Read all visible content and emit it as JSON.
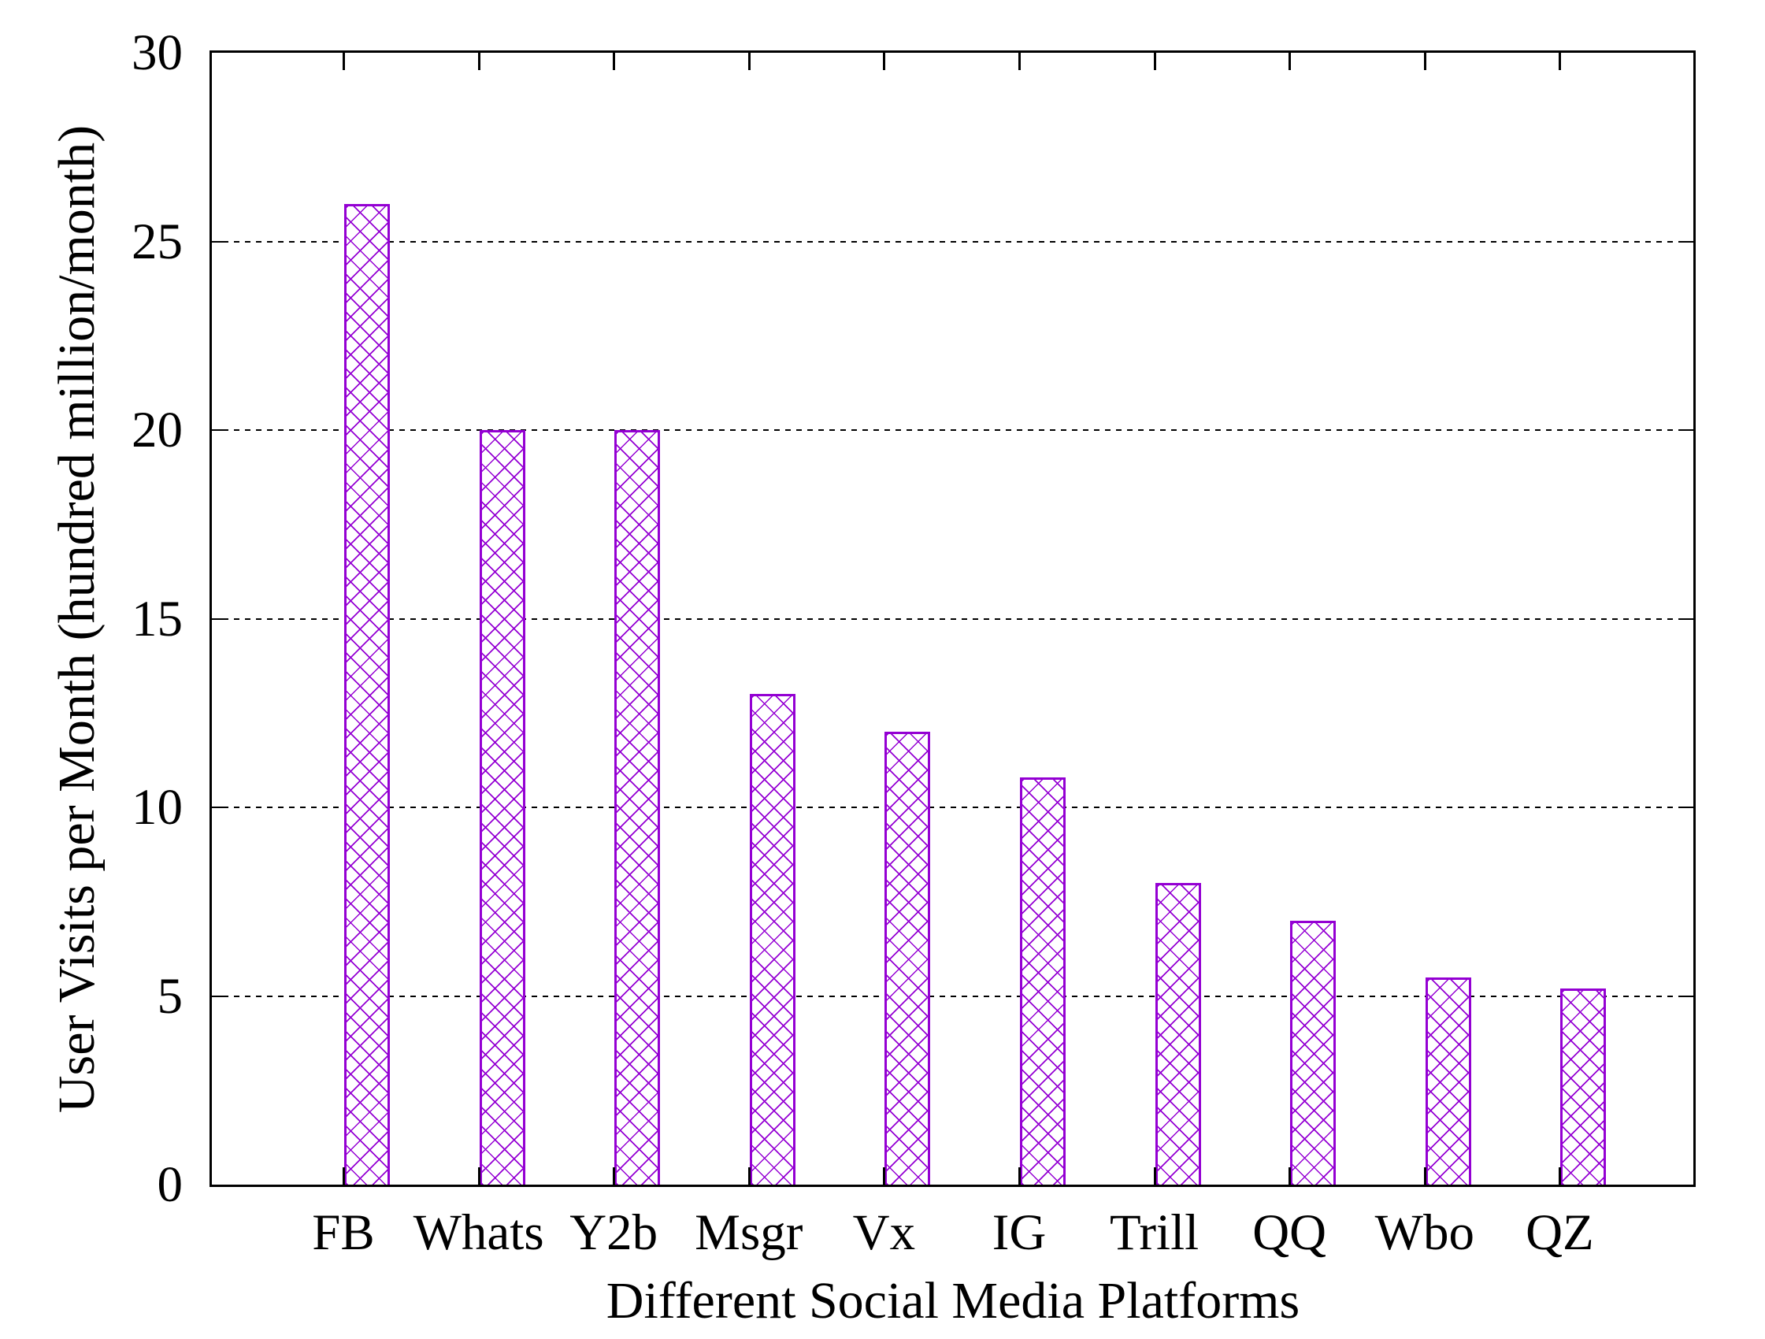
{
  "chart_data": {
    "type": "bar",
    "categories": [
      "FB",
      "Whats",
      "Y2b",
      "Msgr",
      "Vx",
      "IG",
      "Trill",
      "QQ",
      "Wbo",
      "QZ"
    ],
    "values": [
      26,
      20,
      20,
      13,
      12,
      10.8,
      8,
      7,
      5.5,
      5.2
    ],
    "title": "",
    "xlabel": "Different Social Media Platforms",
    "ylabel": "User Visits per Month (hundred million/month)",
    "ylim": [
      0,
      30
    ],
    "yticks": [
      0,
      5,
      10,
      15,
      20,
      25,
      30
    ],
    "grid": "horizontal dotted lines at 5, 10, 15, 20, 25",
    "legend": "none",
    "bar_color": "#9400d3",
    "bar_fill_pattern": "crosshatch on white",
    "axis_color": "#000000"
  }
}
